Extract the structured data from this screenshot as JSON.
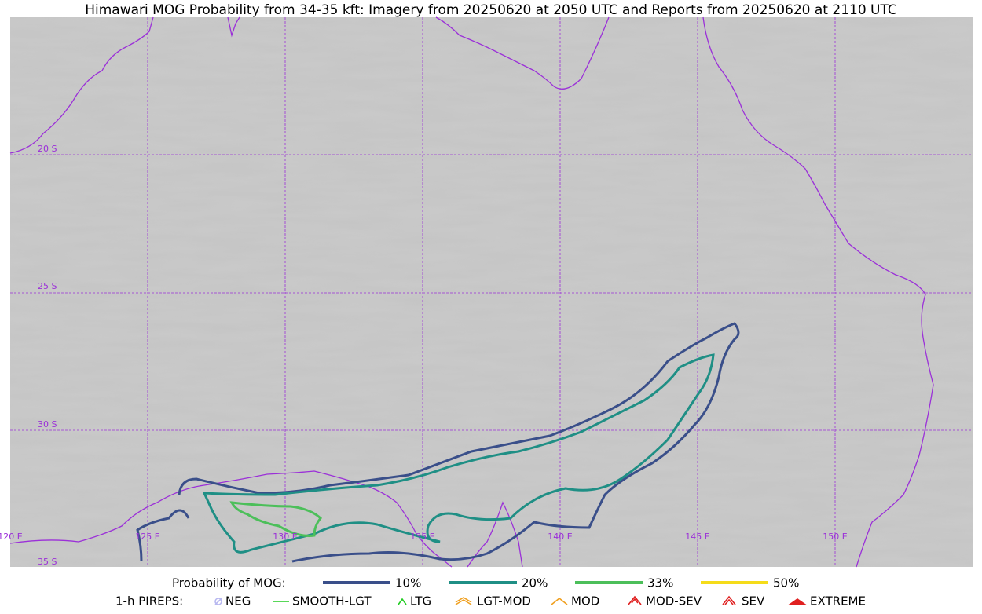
{
  "title": "Himawari MOG Probability from 34-35 kft: Imagery from 20250620 at 2050 UTC and Reports from 20250620 at 2110 UTC",
  "map": {
    "lat_labels": [
      "20 S",
      "25 S",
      "30 S",
      "35 S"
    ],
    "lon_labels": [
      "120 E",
      "125 E",
      "130 E",
      "135 E",
      "140 E",
      "145 E",
      "150 E"
    ]
  },
  "legend": {
    "mog": {
      "title": "Probability of MOG:",
      "items": [
        {
          "label": "10%",
          "color": "#3a4f8a"
        },
        {
          "label": "20%",
          "color": "#1f8f85"
        },
        {
          "label": "33%",
          "color": "#4cbf5a"
        },
        {
          "label": "50%",
          "color": "#f5dc1a"
        }
      ]
    },
    "pireps": {
      "title": "1-h PIREPS:",
      "items": [
        {
          "label": "NEG",
          "color": "#b8b8f0"
        },
        {
          "label": "SMOOTH-LGT",
          "color": "#22cc22"
        },
        {
          "label": "LTG",
          "color": "#22cc22"
        },
        {
          "label": "LGT-MOD",
          "color": "#f0a020"
        },
        {
          "label": "MOD",
          "color": "#f0a020"
        },
        {
          "label": "MOD-SEV",
          "color": "#e02020"
        },
        {
          "label": "SEV",
          "color": "#e02020"
        },
        {
          "label": "EXTREME",
          "color": "#e02020"
        }
      ]
    }
  }
}
